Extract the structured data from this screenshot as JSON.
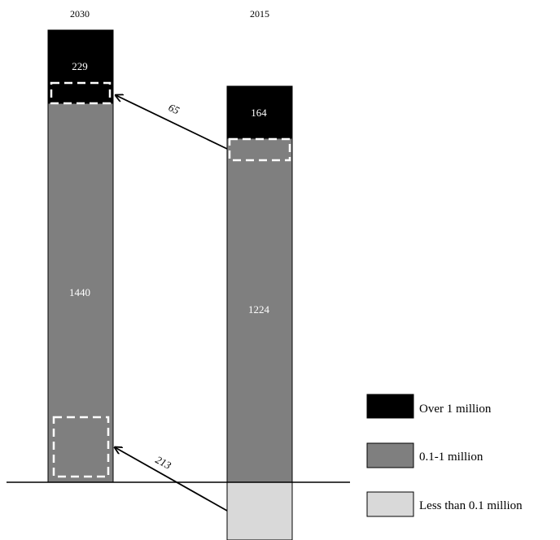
{
  "chart_data": {
    "type": "bar",
    "stacked": true,
    "categories": [
      "2030",
      "2015"
    ],
    "series": [
      {
        "name": "Over 1 million",
        "color": "#000000",
        "values": [
          229,
          164
        ]
      },
      {
        "name": "0.1-1 million",
        "color": "#7f7f7f",
        "values": [
          1440,
          1224
        ]
      }
    ],
    "below_baseline_segment": {
      "category": "2015",
      "series": "Less than 0.1 million",
      "color": "#d9d9d9"
    },
    "transitions": [
      {
        "value": 65,
        "label": "65",
        "from": "2015 · 0.1-1 million",
        "to": "2030 · Over 1 million"
      },
      {
        "value": 213,
        "label": "213",
        "from": "2015 · Less than 0.1 million",
        "to": "2030 · 0.1-1 million"
      }
    ],
    "legend": {
      "position": "bottom-right",
      "items": [
        {
          "label": "Over 1 million",
          "color": "#000000"
        },
        {
          "label": "0.1-1 million",
          "color": "#7f7f7f"
        },
        {
          "label": "Less than 0.1 million",
          "color": "#d9d9d9"
        }
      ]
    },
    "axes": {
      "x_axis_visible": false,
      "y_axis_visible": false,
      "grid": false
    }
  }
}
